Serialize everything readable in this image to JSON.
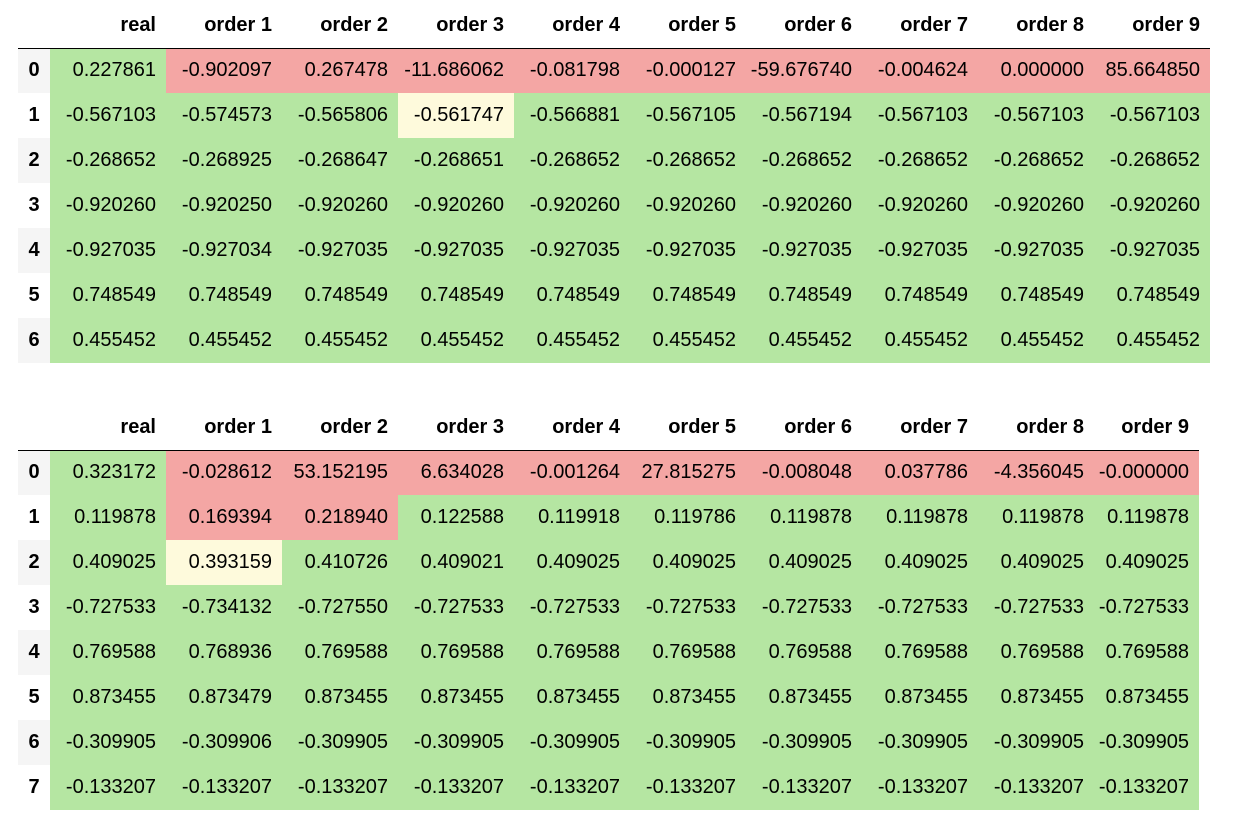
{
  "colors": {
    "good": "#b5e6a2",
    "warn": "#fefadc",
    "bad": "#f4a6a4",
    "index_stripe": "#f5f5f5"
  },
  "tables": [
    {
      "columns": [
        "real",
        "order 1",
        "order 2",
        "order 3",
        "order 4",
        "order 5",
        "order 6",
        "order 7",
        "order 8",
        "order 9"
      ],
      "rows": [
        {
          "index": "0",
          "values": [
            "0.227861",
            "-0.902097",
            "0.267478",
            "-11.686062",
            "-0.081798",
            "-0.000127",
            "-59.676740",
            "-0.004624",
            "0.000000",
            "85.664850"
          ],
          "status": [
            "good",
            "bad",
            "bad",
            "bad",
            "bad",
            "bad",
            "bad",
            "bad",
            "bad",
            "bad"
          ]
        },
        {
          "index": "1",
          "values": [
            "-0.567103",
            "-0.574573",
            "-0.565806",
            "-0.561747",
            "-0.566881",
            "-0.567105",
            "-0.567194",
            "-0.567103",
            "-0.567103",
            "-0.567103"
          ],
          "status": [
            "good",
            "good",
            "good",
            "warn",
            "good",
            "good",
            "good",
            "good",
            "good",
            "good"
          ]
        },
        {
          "index": "2",
          "values": [
            "-0.268652",
            "-0.268925",
            "-0.268647",
            "-0.268651",
            "-0.268652",
            "-0.268652",
            "-0.268652",
            "-0.268652",
            "-0.268652",
            "-0.268652"
          ],
          "status": [
            "good",
            "good",
            "good",
            "good",
            "good",
            "good",
            "good",
            "good",
            "good",
            "good"
          ]
        },
        {
          "index": "3",
          "values": [
            "-0.920260",
            "-0.920250",
            "-0.920260",
            "-0.920260",
            "-0.920260",
            "-0.920260",
            "-0.920260",
            "-0.920260",
            "-0.920260",
            "-0.920260"
          ],
          "status": [
            "good",
            "good",
            "good",
            "good",
            "good",
            "good",
            "good",
            "good",
            "good",
            "good"
          ]
        },
        {
          "index": "4",
          "values": [
            "-0.927035",
            "-0.927034",
            "-0.927035",
            "-0.927035",
            "-0.927035",
            "-0.927035",
            "-0.927035",
            "-0.927035",
            "-0.927035",
            "-0.927035"
          ],
          "status": [
            "good",
            "good",
            "good",
            "good",
            "good",
            "good",
            "good",
            "good",
            "good",
            "good"
          ]
        },
        {
          "index": "5",
          "values": [
            "0.748549",
            "0.748549",
            "0.748549",
            "0.748549",
            "0.748549",
            "0.748549",
            "0.748549",
            "0.748549",
            "0.748549",
            "0.748549"
          ],
          "status": [
            "good",
            "good",
            "good",
            "good",
            "good",
            "good",
            "good",
            "good",
            "good",
            "good"
          ]
        },
        {
          "index": "6",
          "values": [
            "0.455452",
            "0.455452",
            "0.455452",
            "0.455452",
            "0.455452",
            "0.455452",
            "0.455452",
            "0.455452",
            "0.455452",
            "0.455452"
          ],
          "status": [
            "good",
            "good",
            "good",
            "good",
            "good",
            "good",
            "good",
            "good",
            "good",
            "good"
          ]
        }
      ]
    },
    {
      "columns": [
        "real",
        "order 1",
        "order 2",
        "order 3",
        "order 4",
        "order 5",
        "order 6",
        "order 7",
        "order 8",
        "order 9"
      ],
      "rows": [
        {
          "index": "0",
          "values": [
            "0.323172",
            "-0.028612",
            "53.152195",
            "6.634028",
            "-0.001264",
            "27.815275",
            "-0.008048",
            "0.037786",
            "-4.356045",
            "-0.000000"
          ],
          "status": [
            "good",
            "bad",
            "bad",
            "bad",
            "bad",
            "bad",
            "bad",
            "bad",
            "bad",
            "bad"
          ]
        },
        {
          "index": "1",
          "values": [
            "0.119878",
            "0.169394",
            "0.218940",
            "0.122588",
            "0.119918",
            "0.119786",
            "0.119878",
            "0.119878",
            "0.119878",
            "0.119878"
          ],
          "status": [
            "good",
            "bad",
            "bad",
            "good",
            "good",
            "good",
            "good",
            "good",
            "good",
            "good"
          ]
        },
        {
          "index": "2",
          "values": [
            "0.409025",
            "0.393159",
            "0.410726",
            "0.409021",
            "0.409025",
            "0.409025",
            "0.409025",
            "0.409025",
            "0.409025",
            "0.409025"
          ],
          "status": [
            "good",
            "warn",
            "good",
            "good",
            "good",
            "good",
            "good",
            "good",
            "good",
            "good"
          ]
        },
        {
          "index": "3",
          "values": [
            "-0.727533",
            "-0.734132",
            "-0.727550",
            "-0.727533",
            "-0.727533",
            "-0.727533",
            "-0.727533",
            "-0.727533",
            "-0.727533",
            "-0.727533"
          ],
          "status": [
            "good",
            "good",
            "good",
            "good",
            "good",
            "good",
            "good",
            "good",
            "good",
            "good"
          ]
        },
        {
          "index": "4",
          "values": [
            "0.769588",
            "0.768936",
            "0.769588",
            "0.769588",
            "0.769588",
            "0.769588",
            "0.769588",
            "0.769588",
            "0.769588",
            "0.769588"
          ],
          "status": [
            "good",
            "good",
            "good",
            "good",
            "good",
            "good",
            "good",
            "good",
            "good",
            "good"
          ]
        },
        {
          "index": "5",
          "values": [
            "0.873455",
            "0.873479",
            "0.873455",
            "0.873455",
            "0.873455",
            "0.873455",
            "0.873455",
            "0.873455",
            "0.873455",
            "0.873455"
          ],
          "status": [
            "good",
            "good",
            "good",
            "good",
            "good",
            "good",
            "good",
            "good",
            "good",
            "good"
          ]
        },
        {
          "index": "6",
          "values": [
            "-0.309905",
            "-0.309906",
            "-0.309905",
            "-0.309905",
            "-0.309905",
            "-0.309905",
            "-0.309905",
            "-0.309905",
            "-0.309905",
            "-0.309905"
          ],
          "status": [
            "good",
            "good",
            "good",
            "good",
            "good",
            "good",
            "good",
            "good",
            "good",
            "good"
          ]
        },
        {
          "index": "7",
          "values": [
            "-0.133207",
            "-0.133207",
            "-0.133207",
            "-0.133207",
            "-0.133207",
            "-0.133207",
            "-0.133207",
            "-0.133207",
            "-0.133207",
            "-0.133207"
          ],
          "status": [
            "good",
            "good",
            "good",
            "good",
            "good",
            "good",
            "good",
            "good",
            "good",
            "good"
          ]
        }
      ]
    }
  ]
}
